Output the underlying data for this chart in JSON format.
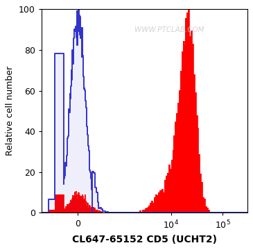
{
  "title": "",
  "xlabel": "CL647-65152 CD5 (UCHT2)",
  "ylabel": "Relative cell number",
  "ylim": [
    0,
    100
  ],
  "yticks": [
    0,
    20,
    40,
    60,
    80,
    100
  ],
  "watermark": "WWW.PTCLAB.COM",
  "background_color": "#ffffff",
  "plot_bg_color": "#ffffff",
  "blue_color": "#3333cc",
  "red_fill_color": "#ff0000",
  "xlabel_fontsize": 10,
  "ylabel_fontsize": 9,
  "tick_fontsize": 9,
  "linthresh": 300,
  "linscale": 0.25
}
